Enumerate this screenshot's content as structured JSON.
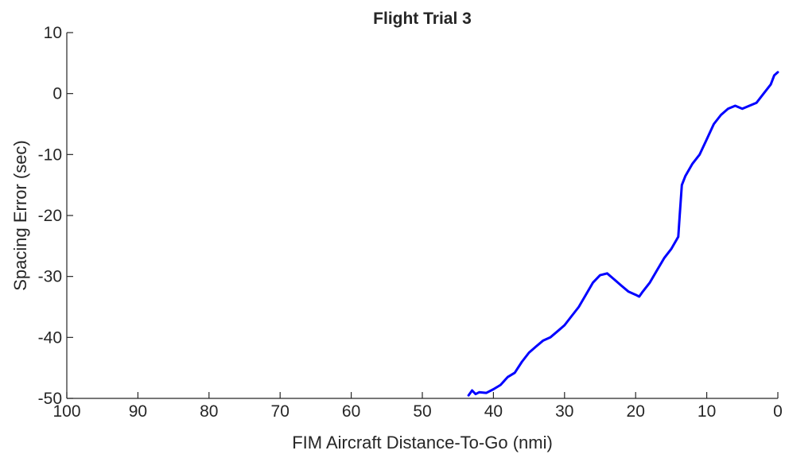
{
  "chart_data": {
    "type": "line",
    "title": "Flight Trial 3",
    "xlabel": "FIM Aircraft Distance-To-Go (nmi)",
    "ylabel": "Spacing Error (sec)",
    "xlim": [
      100,
      0
    ],
    "ylim": [
      -50,
      10
    ],
    "x_reversed": true,
    "x_ticks": [
      100,
      90,
      80,
      70,
      60,
      50,
      40,
      30,
      20,
      10,
      0
    ],
    "y_ticks": [
      10,
      0,
      -10,
      -20,
      -30,
      -40,
      -50
    ],
    "grid": false,
    "line_color": "#0000ff",
    "series": [
      {
        "x": [
          43.5,
          43.0,
          42.5,
          42.0,
          41.0,
          40.0,
          39.0,
          38.0,
          37.0,
          36.0,
          35.0,
          34.0,
          33.0,
          32.0,
          31.0,
          30.0,
          29.0,
          28.0,
          27.0,
          26.0,
          25.0,
          24.0,
          23.0,
          22.0,
          21.0,
          20.0,
          19.5,
          19.0,
          18.0,
          17.0,
          16.0,
          15.0,
          14.0,
          13.8,
          13.5,
          13.0,
          12.0,
          11.0,
          10.0,
          9.0,
          8.0,
          7.0,
          6.0,
          5.0,
          4.0,
          3.0,
          2.0,
          1.0,
          0.5,
          0.0
        ],
        "y": [
          -49.5,
          -48.7,
          -49.3,
          -49.0,
          -49.1,
          -48.5,
          -47.8,
          -46.5,
          -45.8,
          -44.0,
          -42.5,
          -41.5,
          -40.5,
          -40.0,
          -39.0,
          -38.0,
          -36.5,
          -35.0,
          -33.0,
          -31.0,
          -29.8,
          -29.5,
          -30.5,
          -31.5,
          -32.5,
          -33.0,
          -33.3,
          -32.5,
          -31.0,
          -29.0,
          -27.0,
          -25.5,
          -23.5,
          -20.0,
          -15.0,
          -13.5,
          -11.5,
          -10.0,
          -7.5,
          -5.0,
          -3.5,
          -2.5,
          -2.0,
          -2.5,
          -2.0,
          -1.5,
          0.0,
          1.5,
          3.0,
          3.5
        ]
      }
    ]
  }
}
